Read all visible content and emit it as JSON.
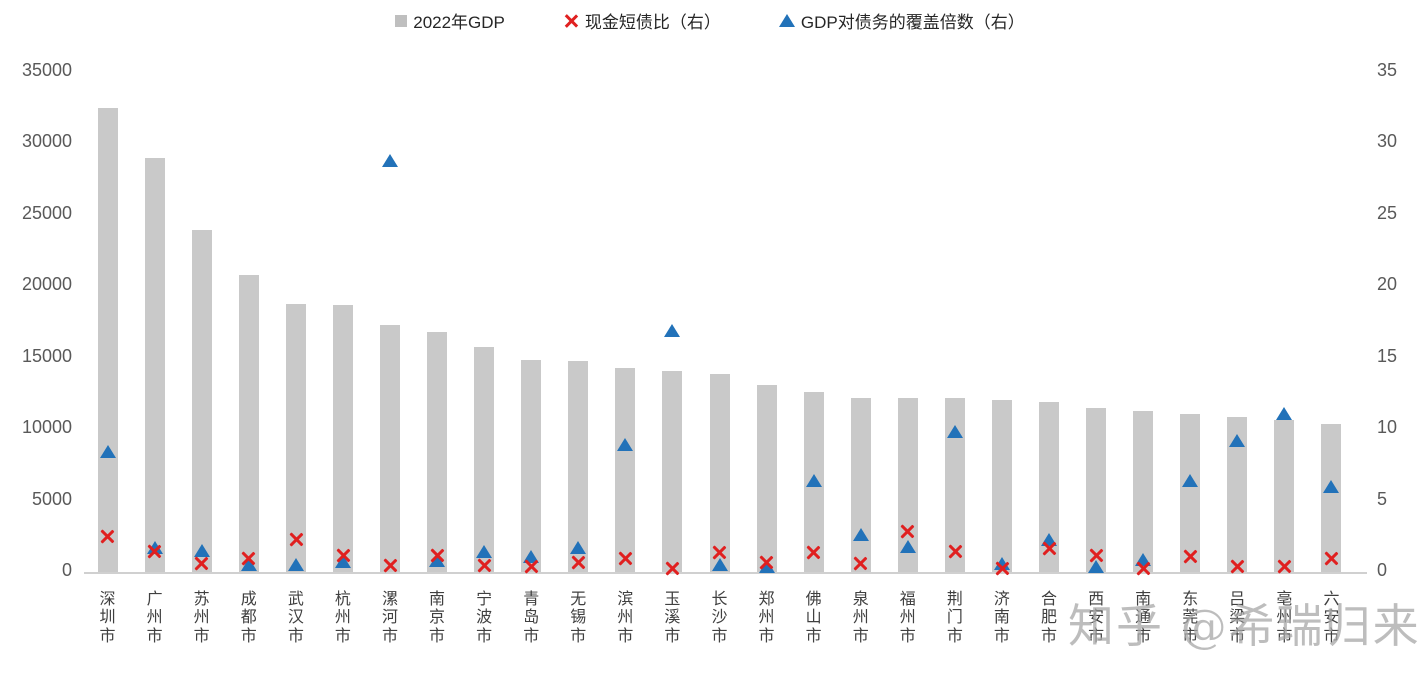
{
  "legend": [
    {
      "label": "2022年GDP",
      "marker": "square-icon",
      "color": "#bfbfbf"
    },
    {
      "label": "现金短债比（右）",
      "marker": "x-icon",
      "color": "#e02020"
    },
    {
      "label": "GDP对债务的覆盖倍数（右）",
      "marker": "triangle-icon",
      "color": "#2272b9"
    }
  ],
  "watermark": "知乎 @希瑞归来",
  "chart_data": {
    "type": "bar",
    "title": "",
    "legend_position": "top-center",
    "grid": false,
    "categories": [
      "深圳市",
      "广州市",
      "苏州市",
      "成都市",
      "武汉市",
      "杭州市",
      "漯河市",
      "南京市",
      "宁波市",
      "青岛市",
      "无锡市",
      "滨州市",
      "玉溪市",
      "长沙市",
      "郑州市",
      "佛山市",
      "泉州市",
      "福州市",
      "荆门市",
      "济南市",
      "合肥市",
      "西安市",
      "南通市",
      "东莞市",
      "吕梁市",
      "亳州市",
      "六安市"
    ],
    "left_axis": {
      "label": "",
      "range": [
        0,
        35000
      ],
      "ticks": [
        0,
        5000,
        10000,
        15000,
        20000,
        25000,
        30000,
        35000
      ]
    },
    "right_axis": {
      "label": "",
      "range": [
        0,
        35
      ],
      "ticks": [
        0,
        5,
        10,
        15,
        20,
        25,
        30,
        35
      ]
    },
    "series": [
      {
        "name": "2022年GDP",
        "type": "bar",
        "axis": "left",
        "color": "#c9c9c9",
        "values": [
          32400,
          28900,
          23900,
          20700,
          18700,
          18600,
          17200,
          16700,
          15700,
          14800,
          14700,
          14200,
          14000,
          13800,
          13000,
          12500,
          12100,
          12100,
          12100,
          12000,
          11800,
          11400,
          11200,
          11000,
          10800,
          10600,
          10300
        ]
      },
      {
        "name": "现金短债比（右）",
        "type": "scatter",
        "marker": "x",
        "axis": "right",
        "color": "#e02020",
        "values": [
          2.4,
          1.4,
          0.5,
          0.9,
          2.2,
          1.1,
          0.4,
          1.1,
          0.4,
          0.3,
          0.6,
          0.9,
          0.2,
          1.3,
          0.6,
          1.3,
          0.5,
          2.8,
          1.4,
          0.2,
          1.6,
          1.1,
          0.2,
          1.0,
          0.3,
          0.3,
          0.9
        ]
      },
      {
        "name": "GDP对债务的覆盖倍数（右）",
        "type": "scatter",
        "marker": "triangle",
        "axis": "right",
        "color": "#2272b9",
        "values": [
          8.3,
          1.6,
          1.4,
          0.4,
          0.4,
          0.6,
          28.7,
          0.7,
          1.3,
          1.0,
          1.6,
          8.8,
          16.8,
          0.4,
          0.3,
          6.3,
          2.5,
          1.7,
          9.7,
          0.5,
          2.2,
          0.3,
          0.8,
          6.3,
          9.1,
          11.0,
          5.9
        ]
      }
    ]
  }
}
